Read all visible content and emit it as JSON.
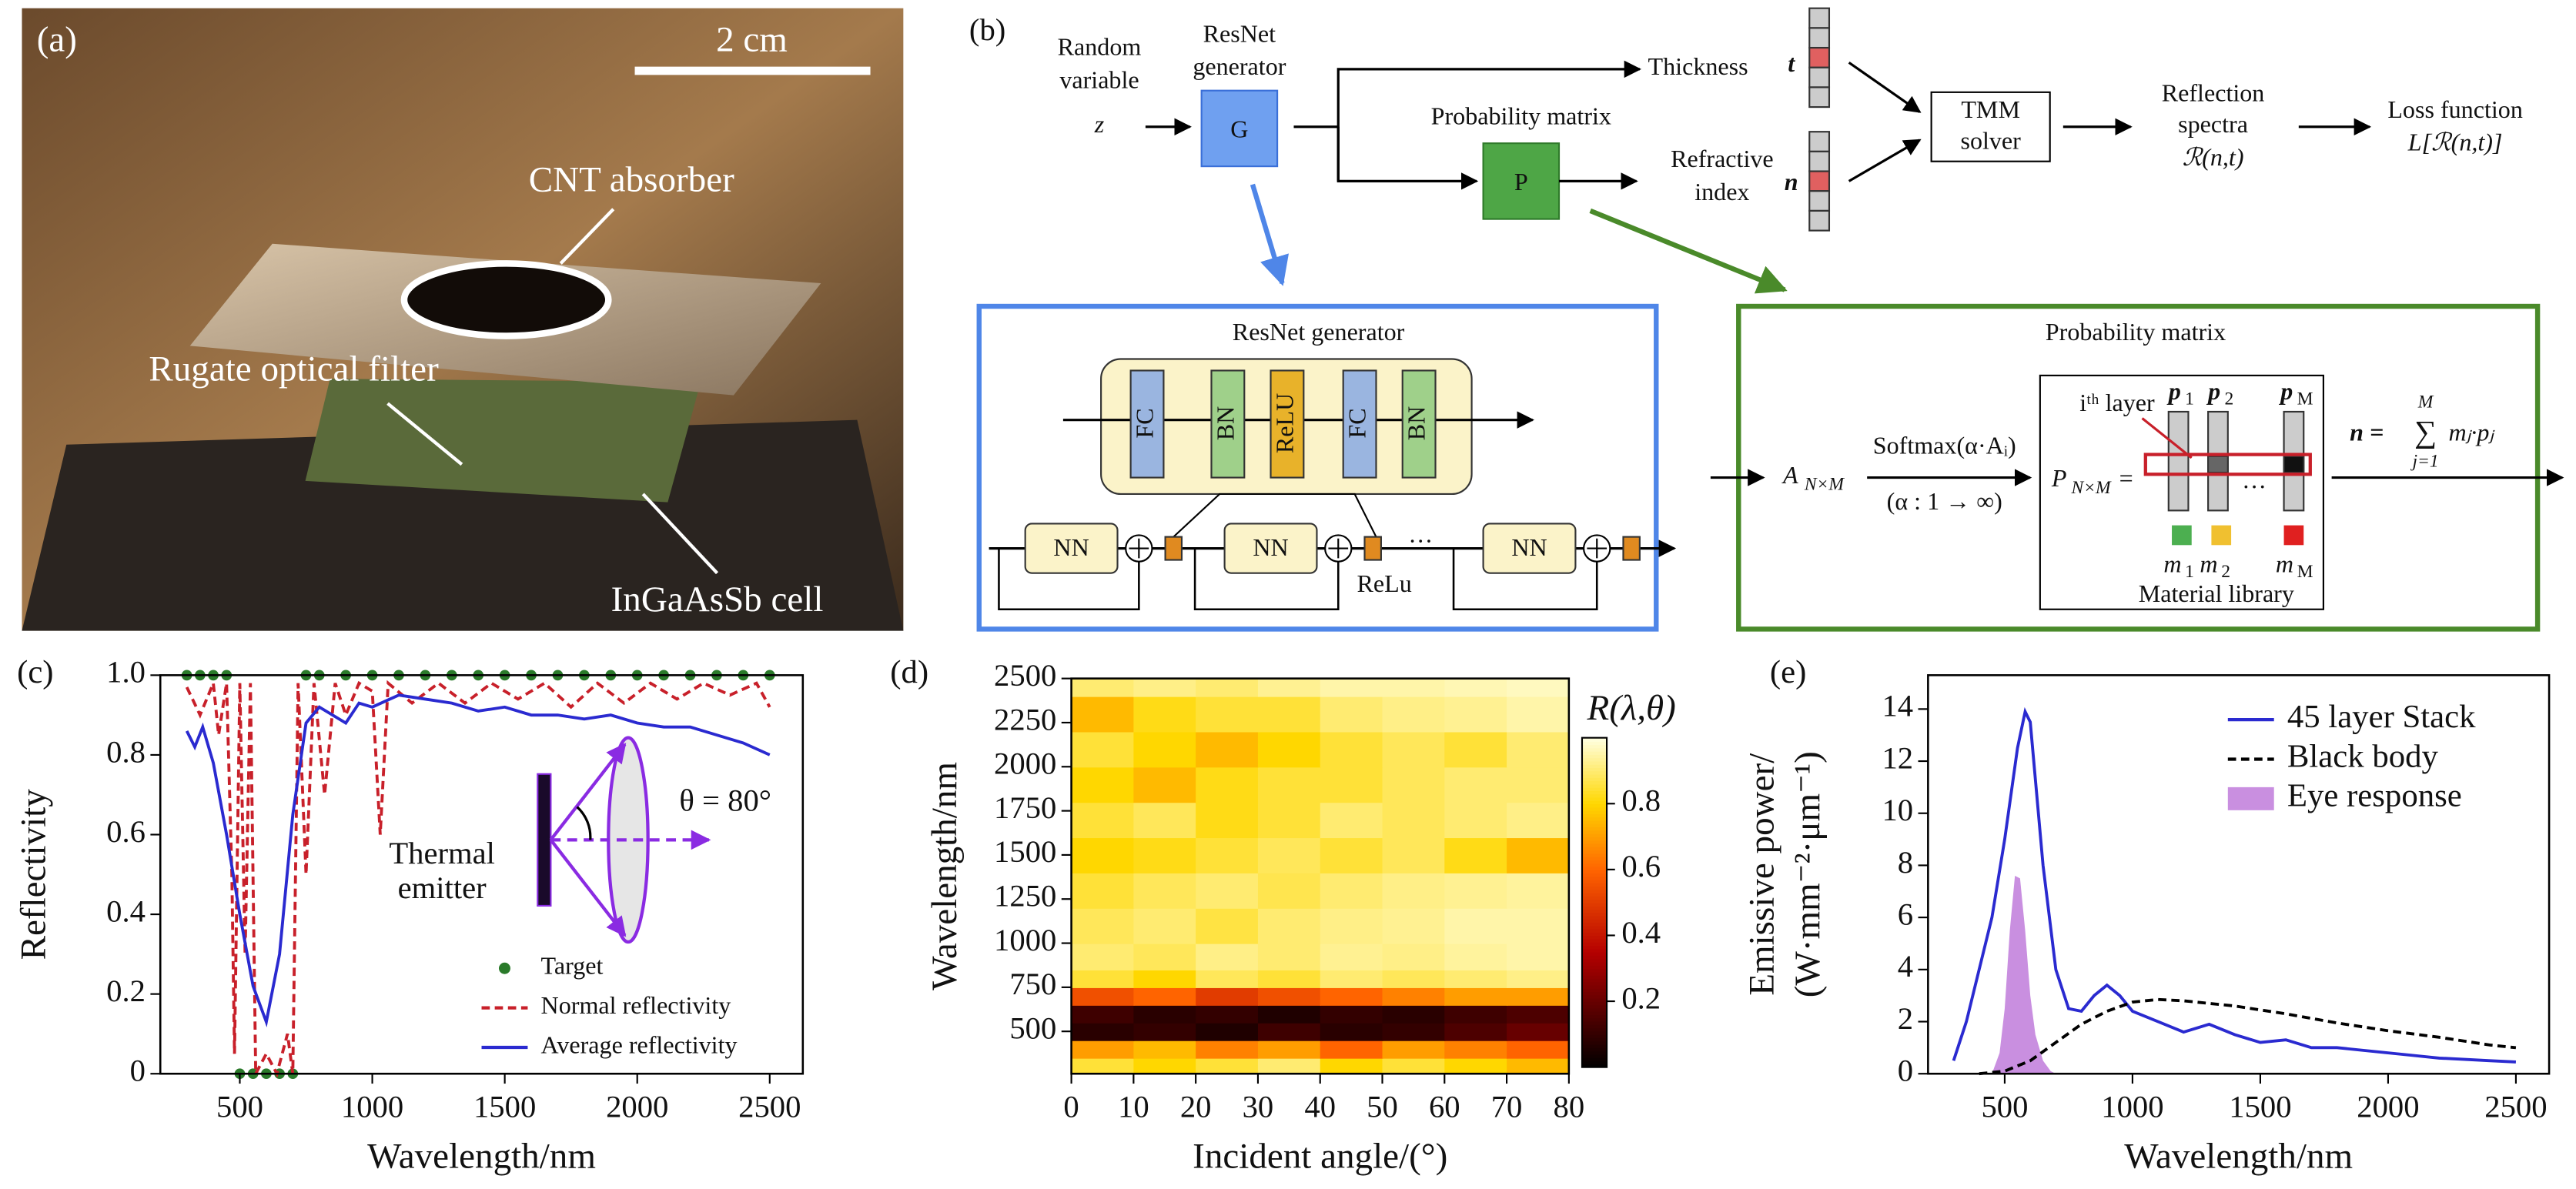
{
  "photo": {
    "label": "(a)",
    "scale": "2 cm",
    "absorber": "CNT absorber",
    "filter": "Rugate optical filter",
    "cell": "InGaAsSb cell"
  },
  "diagram": {
    "label": "(b)",
    "random_variable": [
      "Random",
      "variable"
    ],
    "z": "z",
    "generator_label": [
      "ResNet",
      "generator"
    ],
    "G": "G",
    "thickness": "Thickness",
    "t": "t",
    "probability_matrix": "Probability matrix",
    "P": "P",
    "refractive_index": [
      "Refractive",
      "index"
    ],
    "n": "n",
    "tmm": [
      "TMM",
      "solver"
    ],
    "reflection": [
      "Reflection",
      "spectra",
      "ℛ(n,t)"
    ],
    "loss": [
      "Loss function",
      "L[ℛ(n,t)]"
    ],
    "resnet_box": {
      "title": "ResNet generator",
      "layers": [
        "FC",
        "BN",
        "ReLU",
        "FC",
        "BN"
      ],
      "nn": [
        "NN",
        "NN",
        "NN"
      ],
      "relu": "ReLu",
      "ellipsis": "···"
    },
    "prob_box": {
      "title": "Probability matrix",
      "input": [
        "A",
        "N×M"
      ],
      "softmax": "Softmax(α·Aᵢ)",
      "range": "(α : 1 → ∞)",
      "layer": "iᵗʰ layer",
      "matrix": [
        "P",
        "N×M",
        "="
      ],
      "columns": [
        [
          "p",
          "1"
        ],
        [
          "p",
          "2"
        ],
        [
          "p",
          "M"
        ]
      ],
      "ellipsis": "···",
      "materials": [
        [
          "m",
          "1"
        ],
        [
          "m",
          "2"
        ],
        [
          "m",
          "M"
        ]
      ],
      "library": "Material library",
      "sum": {
        "lhs": "n =",
        "symbol": "∑",
        "upper": "M",
        "lower": "j=1",
        "expr": "mⱼ·pⱼ"
      }
    }
  },
  "chart_data": [
    {
      "type": "line",
      "label": "(c)",
      "xlabel": "Wavelength/nm",
      "ylabel": "Reflectivity",
      "xlim": [
        200,
        2625
      ],
      "ylim": [
        0,
        1
      ],
      "xticks": [
        500,
        1000,
        1500,
        2000,
        2500
      ],
      "yticks": [
        0,
        0.2,
        0.4,
        0.6,
        0.8,
        {
          "value": 1,
          "label": "1.0"
        }
      ],
      "legend": "lower right",
      "annotations": [
        "Thermal",
        "emitter",
        "θ = 80°"
      ],
      "series": [
        {
          "name": "Target",
          "color": "#2a7a2a",
          "style": "scatter",
          "x": [
            300,
            350,
            400,
            450,
            500,
            550,
            600,
            650,
            700,
            750,
            800,
            900,
            1000,
            1100,
            1200,
            1300,
            1400,
            1500,
            1600,
            1700,
            1800,
            1900,
            2000,
            2100,
            2200,
            2300,
            2400,
            2500
          ],
          "values": [
            1,
            1,
            1,
            1,
            0,
            0,
            0,
            0,
            0,
            1,
            1,
            1,
            1,
            1,
            1,
            1,
            1,
            1,
            1,
            1,
            1,
            1,
            1,
            1,
            1,
            1,
            1,
            1
          ]
        },
        {
          "name": "Normal reflectivity",
          "color": "#c8202a",
          "style": "dashed",
          "x": [
            300,
            350,
            400,
            420,
            450,
            470,
            480,
            500,
            520,
            540,
            560,
            600,
            640,
            680,
            700,
            720,
            750,
            780,
            820,
            860,
            900,
            950,
            1000,
            1030,
            1060,
            1150,
            1250,
            1350,
            1450,
            1550,
            1650,
            1750,
            1850,
            1950,
            2050,
            2150,
            2250,
            2350,
            2450,
            2500
          ],
          "values": [
            0.97,
            0.9,
            0.98,
            0.85,
            0.98,
            0.5,
            0.05,
            0.98,
            0.3,
            0.98,
            0,
            0.05,
            0,
            0.1,
            0,
            0.98,
            0.5,
            0.98,
            0.7,
            0.98,
            0.9,
            0.98,
            0.96,
            0.6,
            0.98,
            0.93,
            0.98,
            0.93,
            0.98,
            0.94,
            0.98,
            0.92,
            0.98,
            0.93,
            0.98,
            0.94,
            0.98,
            0.95,
            0.98,
            0.92
          ]
        },
        {
          "name": "Average reflectivity",
          "color": "#2a2ad0",
          "style": "solid",
          "x": [
            300,
            330,
            360,
            400,
            450,
            500,
            550,
            600,
            650,
            700,
            750,
            800,
            850,
            900,
            950,
            1000,
            1100,
            1200,
            1300,
            1400,
            1500,
            1600,
            1700,
            1800,
            1900,
            2000,
            2100,
            2200,
            2300,
            2400,
            2500
          ],
          "values": [
            0.86,
            0.82,
            0.87,
            0.78,
            0.6,
            0.4,
            0.22,
            0.13,
            0.3,
            0.65,
            0.88,
            0.92,
            0.9,
            0.88,
            0.93,
            0.92,
            0.95,
            0.94,
            0.93,
            0.91,
            0.92,
            0.9,
            0.9,
            0.89,
            0.9,
            0.88,
            0.87,
            0.87,
            0.85,
            0.83,
            0.8
          ]
        }
      ]
    },
    {
      "type": "heatmap",
      "label": "(d)",
      "xlabel": "Incident angle/(°)",
      "ylabel": "Wavelength/nm",
      "xlim": [
        0,
        80
      ],
      "ylim": [
        260,
        2500
      ],
      "xticks": [
        0,
        10,
        20,
        30,
        40,
        50,
        60,
        70,
        80
      ],
      "yticks": [
        500,
        750,
        1000,
        1250,
        1500,
        1750,
        2000,
        2250,
        2500
      ],
      "colormap": "hot",
      "clim": [
        0,
        1
      ],
      "cticks": [
        0.2,
        0.4,
        0.6,
        0.8
      ],
      "colorbar_label": "R(λ,θ)",
      "x_bins": [
        0,
        10,
        20,
        30,
        40,
        50,
        60,
        70,
        80
      ],
      "y_bins": [
        260,
        350,
        450,
        550,
        650,
        750,
        850,
        1000,
        1200,
        1400,
        1600,
        1800,
        2000,
        2200,
        2400,
        2500
      ],
      "values": [
        [
          0.85,
          0.8,
          0.85,
          0.9,
          0.8,
          0.85,
          0.8,
          0.75
        ],
        [
          0.7,
          0.75,
          0.65,
          0.7,
          0.6,
          0.7,
          0.65,
          0.6
        ],
        [
          0.08,
          0.1,
          0.06,
          0.12,
          0.08,
          0.1,
          0.15,
          0.2
        ],
        [
          0.12,
          0.08,
          0.1,
          0.06,
          0.1,
          0.08,
          0.12,
          0.15
        ],
        [
          0.55,
          0.6,
          0.5,
          0.55,
          0.6,
          0.65,
          0.7,
          0.7
        ],
        [
          0.85,
          0.8,
          0.88,
          0.85,
          0.9,
          0.88,
          0.9,
          0.92
        ],
        [
          0.9,
          0.88,
          0.92,
          0.9,
          0.93,
          0.92,
          0.94,
          0.95
        ],
        [
          0.88,
          0.9,
          0.86,
          0.9,
          0.92,
          0.93,
          0.95,
          0.95
        ],
        [
          0.85,
          0.88,
          0.9,
          0.87,
          0.9,
          0.92,
          0.93,
          0.94
        ],
        [
          0.8,
          0.82,
          0.85,
          0.88,
          0.85,
          0.88,
          0.82,
          0.75
        ],
        [
          0.85,
          0.88,
          0.82,
          0.85,
          0.9,
          0.88,
          0.9,
          0.92
        ],
        [
          0.8,
          0.75,
          0.82,
          0.85,
          0.85,
          0.88,
          0.9,
          0.9
        ],
        [
          0.85,
          0.8,
          0.75,
          0.8,
          0.85,
          0.88,
          0.85,
          0.9
        ],
        [
          0.75,
          0.82,
          0.85,
          0.85,
          0.9,
          0.92,
          0.93,
          0.95
        ],
        [
          0.9,
          0.92,
          0.9,
          0.93,
          0.95,
          0.95,
          0.96,
          0.97
        ]
      ]
    },
    {
      "type": "line",
      "label": "(e)",
      "xlabel": "Wavelength/nm",
      "ylabel": [
        "Emissive power/",
        "(W·mm⁻²·μm⁻¹)"
      ],
      "xlim": [
        200,
        2630
      ],
      "ylim": [
        0,
        15.3
      ],
      "xticks": [
        500,
        1000,
        1500,
        2000,
        2500
      ],
      "yticks": [
        0,
        2,
        4,
        6,
        8,
        10,
        12,
        14
      ],
      "legend": "upper right",
      "series": [
        {
          "name": "45 layer Stack",
          "color": "#2a2ad0",
          "style": "solid",
          "x": [
            300,
            350,
            400,
            450,
            500,
            550,
            580,
            600,
            650,
            700,
            750,
            800,
            850,
            900,
            950,
            1000,
            1100,
            1200,
            1300,
            1400,
            1500,
            1600,
            1700,
            1800,
            1900,
            2000,
            2100,
            2200,
            2300,
            2400,
            2500
          ],
          "values": [
            0.5,
            2,
            4,
            6,
            9,
            12.5,
            13.9,
            13.5,
            8,
            4,
            2.5,
            2.4,
            3,
            3.4,
            3,
            2.4,
            2,
            1.6,
            1.9,
            1.5,
            1.2,
            1.3,
            1,
            1,
            0.9,
            0.8,
            0.7,
            0.6,
            0.55,
            0.5,
            0.45
          ]
        },
        {
          "name": "Black body",
          "color": "#000000",
          "style": "dashed",
          "x": [
            400,
            500,
            600,
            700,
            800,
            900,
            1000,
            1100,
            1200,
            1400,
            1600,
            1800,
            2000,
            2200,
            2400,
            2500
          ],
          "values": [
            0,
            0.1,
            0.5,
            1.2,
            1.9,
            2.4,
            2.75,
            2.85,
            2.8,
            2.6,
            2.3,
            1.95,
            1.65,
            1.4,
            1.1,
            1
          ]
        },
        {
          "name": "Eye response",
          "color": "#c98fe0",
          "style": "area",
          "x": [
            450,
            480,
            500,
            520,
            540,
            560,
            580,
            600,
            620,
            650,
            680,
            700
          ],
          "values": [
            0,
            0.8,
            2.5,
            5.5,
            7.6,
            7.5,
            5.5,
            3,
            1.5,
            0.5,
            0.1,
            0
          ]
        }
      ]
    }
  ]
}
